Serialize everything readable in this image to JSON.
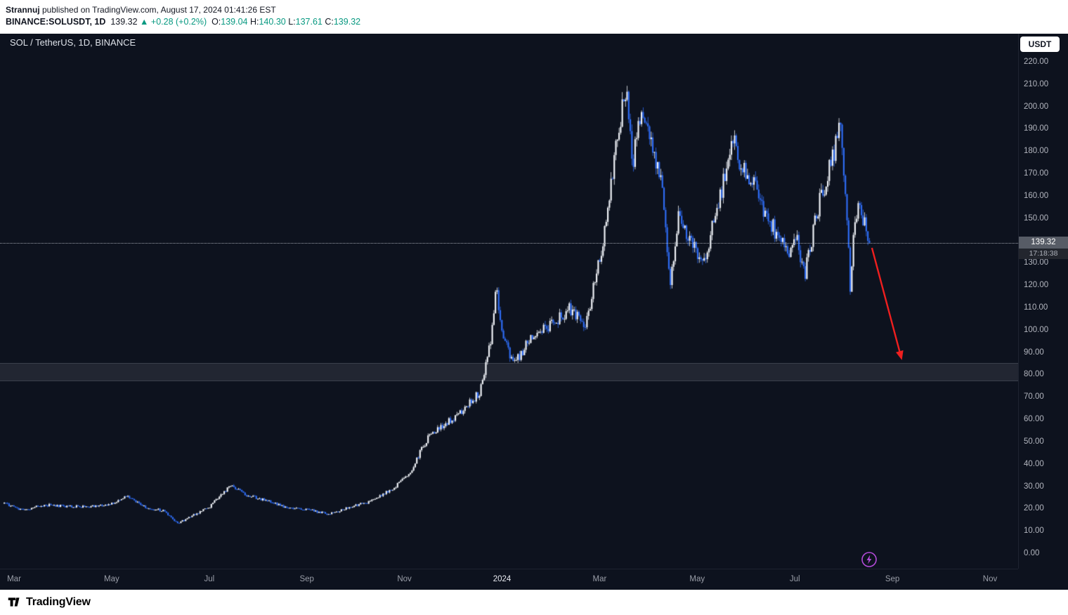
{
  "header": {
    "author": "Strannuj",
    "published_rest": " published on TradingView.com, August 17, 2024 01:41:26 EST",
    "symbol_line_parts": [
      {
        "text": "BINANCE:SOLUSDT, 1D  ",
        "style": "b"
      },
      {
        "text": "139.32 ",
        "style": "d"
      },
      {
        "text": "▲ +0.28 (+0.2%)  ",
        "style": "t"
      },
      {
        "text": "O:",
        "style": "d"
      },
      {
        "text": "139.04 ",
        "style": "t"
      },
      {
        "text": "H:",
        "style": "d"
      },
      {
        "text": "140.30 ",
        "style": "t"
      },
      {
        "text": "L:",
        "style": "d"
      },
      {
        "text": "137.61 ",
        "style": "t"
      },
      {
        "text": "C:",
        "style": "d"
      },
      {
        "text": "139.32",
        "style": "t"
      }
    ]
  },
  "chart": {
    "legend": "SOL / TetherUS, 1D, BINANCE",
    "currency_button_label": "USDT",
    "price_label": "139.32",
    "countdown": "17:18:38"
  },
  "footer": {
    "brand": "TradingView"
  },
  "chart_data": {
    "type": "candlestick",
    "symbol": "BINANCE:SOLUSDT",
    "interval": "1D",
    "title": "SOL / TetherUS, 1D, BINANCE",
    "last": 139.32,
    "change": 0.28,
    "change_pct": 0.2,
    "ohlc": {
      "open": 139.04,
      "high": 140.3,
      "low": 137.61,
      "close": 139.32
    },
    "ylim": [
      0,
      220
    ],
    "y_tick_step": 10,
    "y_ticks_visible": [
      220,
      210,
      200,
      190,
      180,
      170,
      160,
      150,
      130,
      120,
      110,
      100,
      90,
      80,
      70,
      60,
      50,
      40,
      30,
      20,
      10,
      0
    ],
    "x_unit": "months since Mar 2023",
    "x_ticks": [
      {
        "label": "Mar",
        "m": 0
      },
      {
        "label": "May",
        "m": 2
      },
      {
        "label": "Jul",
        "m": 4
      },
      {
        "label": "Sep",
        "m": 6
      },
      {
        "label": "Nov",
        "m": 8
      },
      {
        "label": "2024",
        "m": 10,
        "major": true
      },
      {
        "label": "Mar",
        "m": 12
      },
      {
        "label": "May",
        "m": 14
      },
      {
        "label": "Jul",
        "m": 16
      },
      {
        "label": "Sep",
        "m": 18
      },
      {
        "label": "Nov",
        "m": 20
      }
    ],
    "price_line": 139.32,
    "support_zone": {
      "top": 85.5,
      "bottom": 77.5
    },
    "arrow_annotation": {
      "from": {
        "m": 17.58,
        "price": 137
      },
      "to": {
        "m": 18.18,
        "price": 88
      },
      "color": "#ef1f1f"
    },
    "series_anchors_month_price": [
      [
        -0.2,
        22.5
      ],
      [
        0.2,
        19.5
      ],
      [
        0.6,
        22
      ],
      [
        1.0,
        21.5
      ],
      [
        1.5,
        21
      ],
      [
        2.0,
        22.5
      ],
      [
        2.3,
        26
      ],
      [
        2.7,
        21
      ],
      [
        3.1,
        19
      ],
      [
        3.35,
        13.5
      ],
      [
        3.6,
        16.5
      ],
      [
        4.0,
        21
      ],
      [
        4.45,
        31
      ],
      [
        4.8,
        26
      ],
      [
        5.2,
        24
      ],
      [
        5.6,
        20.5
      ],
      [
        6.0,
        20
      ],
      [
        6.45,
        17.8
      ],
      [
        6.9,
        21
      ],
      [
        7.3,
        23.5
      ],
      [
        7.8,
        30
      ],
      [
        8.1,
        36
      ],
      [
        8.5,
        53
      ],
      [
        8.9,
        59
      ],
      [
        9.2,
        64
      ],
      [
        9.55,
        73
      ],
      [
        9.8,
        100
      ],
      [
        9.87,
        121
      ],
      [
        10.0,
        98
      ],
      [
        10.25,
        84
      ],
      [
        10.5,
        94
      ],
      [
        10.8,
        99
      ],
      [
        11.1,
        104
      ],
      [
        11.4,
        110
      ],
      [
        11.7,
        101
      ],
      [
        11.95,
        128
      ],
      [
        12.15,
        148
      ],
      [
        12.35,
        186
      ],
      [
        12.55,
        207
      ],
      [
        12.68,
        174
      ],
      [
        12.85,
        199
      ],
      [
        13.05,
        182
      ],
      [
        13.25,
        170
      ],
      [
        13.45,
        123
      ],
      [
        13.62,
        152
      ],
      [
        13.85,
        141
      ],
      [
        14.1,
        128
      ],
      [
        14.35,
        150
      ],
      [
        14.55,
        168
      ],
      [
        14.72,
        185
      ],
      [
        14.95,
        172
      ],
      [
        15.15,
        168
      ],
      [
        15.4,
        152
      ],
      [
        15.65,
        143
      ],
      [
        15.85,
        134
      ],
      [
        16.05,
        142
      ],
      [
        16.2,
        124
      ],
      [
        16.45,
        153
      ],
      [
        16.7,
        172
      ],
      [
        16.93,
        191
      ],
      [
        17.08,
        150
      ],
      [
        17.14,
        114
      ],
      [
        17.2,
        140
      ],
      [
        17.3,
        158
      ],
      [
        17.42,
        148
      ],
      [
        17.55,
        139.3
      ]
    ],
    "colors": {
      "up": "#eef1f6",
      "down": "#2e6bf2",
      "bg": "#0d121e",
      "axis_text": "#b2b5be",
      "teal": "#089981",
      "band": "rgba(160,166,180,0.14)",
      "dotted": "#babec8",
      "badge_bg": "#575c66",
      "countdown_bg": "#23262e",
      "arrow": "#ef1f1f",
      "flash_icon": "#b44bd9"
    }
  }
}
